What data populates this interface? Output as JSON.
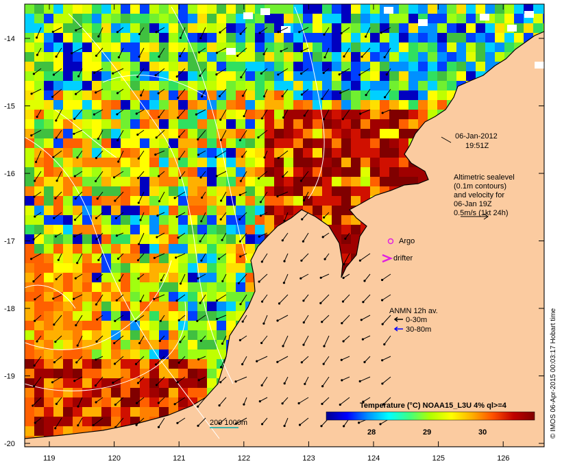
{
  "map": {
    "lat_ticks": [
      "-14",
      "-15",
      "-16",
      "-17",
      "-18",
      "-19",
      "-20"
    ],
    "lon_ticks": [
      "119",
      "120",
      "121",
      "122",
      "123",
      "124",
      "125",
      "126"
    ],
    "colors": {
      "land": "#fbcba0",
      "cloud": "#ffffff",
      "contour": "#ffffff",
      "arrow": "#000000",
      "argo": "#e020e0",
      "anmn_deep": "#0000ff",
      "scale_bar": "#00aaaa"
    }
  },
  "annotations": {
    "date": "06-Jan-2012",
    "time": "19:51Z",
    "altimetry_lines": [
      "Altimetric sealevel",
      "(0.1m contours)",
      "and velocity for",
      "06-Jan 19Z",
      "0.5m/s (1kt 24h)"
    ],
    "argo_label": "Argo",
    "drifter_label": "drifter",
    "anmn_title": "ANMN 12h av.",
    "anmn_shallow": "0-30m",
    "anmn_deep": "30-80m",
    "scale_text": "200  1000m",
    "credit": "© IMOS 06-Apr-2015 00:03:17 Hobart time"
  },
  "colorbar": {
    "title": "Temperature (°C) NOAA15_L3U 4% ql>=4",
    "ticks": [
      "28",
      "29",
      "30"
    ],
    "stops": [
      "#000090",
      "#0000ff",
      "#0090ff",
      "#00ffff",
      "#40ff80",
      "#b0ff00",
      "#ffff00",
      "#ffb000",
      "#ff5000",
      "#c00000",
      "#800000"
    ]
  }
}
